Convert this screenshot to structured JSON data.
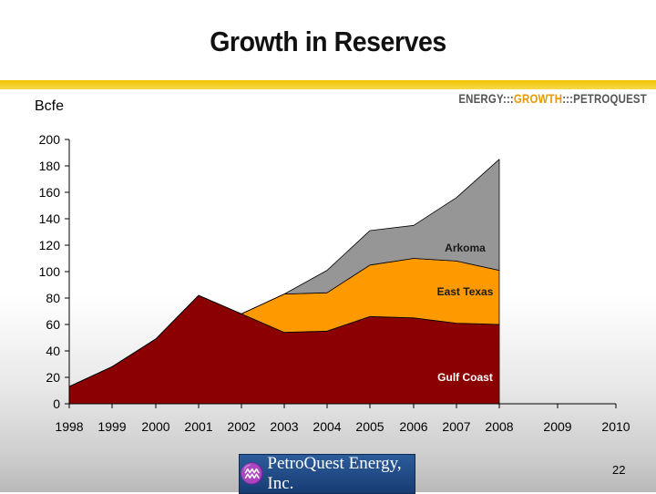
{
  "header": {
    "title": "Growth in Reserves",
    "tagline_parts": [
      "ENERGY:::",
      "GROWTH",
      ":::PETROQUEST"
    ]
  },
  "footer": {
    "logo_text": "PetroQuest Energy, Inc.",
    "page_number": "22"
  },
  "colors": {
    "gulf_coast": "#8b0000",
    "east_texas": "#ff9900",
    "arkoma": "#969696",
    "accent": "#f2c400"
  },
  "chart_data": {
    "type": "area",
    "stacked": true,
    "unit_label": "Bcfe",
    "x": [
      "1998",
      "1999",
      "2000",
      "2001",
      "2002",
      "2003",
      "2004",
      "2005",
      "2006",
      "2007",
      "2008",
      "2009",
      "2010"
    ],
    "ylim": [
      0,
      200
    ],
    "yticks": [
      0,
      20,
      40,
      60,
      80,
      100,
      120,
      140,
      160,
      180,
      200
    ],
    "series": [
      {
        "name": "Gulf Coast",
        "color": "#8b0000",
        "values": [
          13,
          28,
          49,
          82,
          68,
          54,
          55,
          66,
          65,
          61,
          60,
          null,
          null
        ]
      },
      {
        "name": "East Texas",
        "color": "#ff9900",
        "values": [
          0,
          0,
          0,
          0,
          0,
          29,
          29,
          39,
          45,
          47,
          41,
          null,
          null
        ]
      },
      {
        "name": "Arkoma",
        "color": "#969696",
        "values": [
          0,
          0,
          0,
          0,
          0,
          0,
          17,
          26,
          25,
          48,
          84,
          null,
          null
        ]
      }
    ],
    "legend": "inline labels on areas"
  }
}
